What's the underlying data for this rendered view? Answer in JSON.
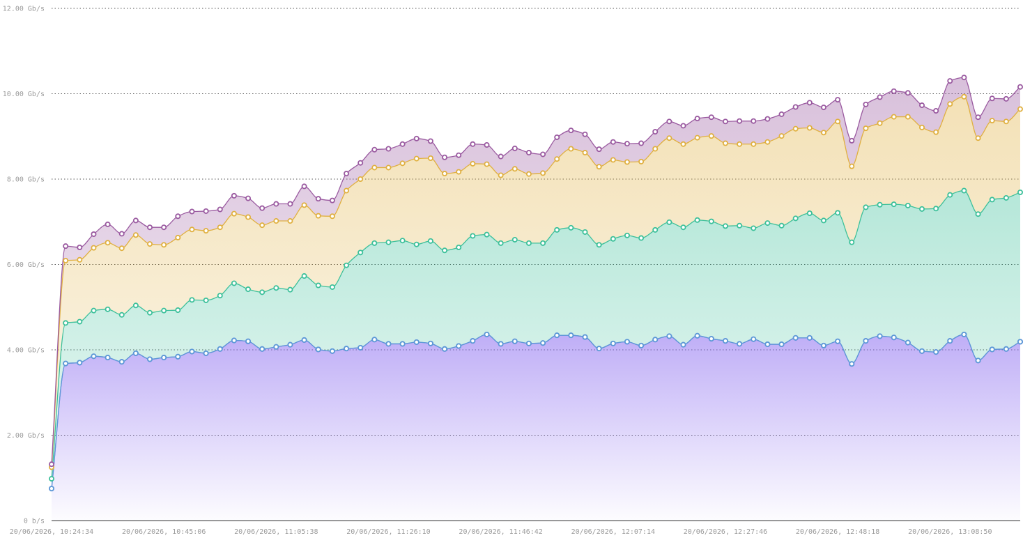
{
  "chart_data": {
    "type": "area",
    "stacked": true,
    "ylim": [
      0,
      12
    ],
    "y_ticks": [
      {
        "value": 0,
        "label": "0 b/s"
      },
      {
        "value": 2,
        "label": "2.00 Gb/s"
      },
      {
        "value": 4,
        "label": "4.00 Gb/s"
      },
      {
        "value": 6,
        "label": "6.00 Gb/s"
      },
      {
        "value": 8,
        "label": "8.00 Gb/s"
      },
      {
        "value": 10,
        "label": "10.00 Gb/s"
      },
      {
        "value": 12,
        "label": "12.00 Gb/s"
      }
    ],
    "x_ticks": [
      {
        "index": 0,
        "label": "20/06/2026, 10:24:34"
      },
      {
        "index": 8,
        "label": "20/06/2026, 10:45:06"
      },
      {
        "index": 16,
        "label": "20/06/2026, 11:05:38"
      },
      {
        "index": 24,
        "label": "20/06/2026, 11:26:10"
      },
      {
        "index": 32,
        "label": "20/06/2026, 11:46:42"
      },
      {
        "index": 40,
        "label": "20/06/2026, 12:07:14"
      },
      {
        "index": 48,
        "label": "20/06/2026, 12:27:46"
      },
      {
        "index": 56,
        "label": "20/06/2026, 12:48:18"
      },
      {
        "index": 64,
        "label": "20/06/2026, 13:08:50"
      }
    ],
    "grid": true,
    "legend": "none",
    "series": [
      {
        "color": "#8b6cf0",
        "values": [
          0.75,
          3.68,
          3.7,
          3.85,
          3.82,
          3.72,
          3.92,
          3.78,
          3.82,
          3.84,
          3.96,
          3.92,
          4.02,
          4.22,
          4.2,
          4.02,
          4.07,
          4.12,
          4.23,
          4.01,
          3.97,
          4.03,
          4.05,
          4.24,
          4.14,
          4.14,
          4.18,
          4.15,
          4.02,
          4.09,
          4.21,
          4.36,
          4.14,
          4.2,
          4.15,
          4.16,
          4.34,
          4.34,
          4.3,
          4.03,
          4.15,
          4.19,
          4.1,
          4.24,
          4.32,
          4.12,
          4.33,
          4.26,
          4.21,
          4.14,
          4.25,
          4.13,
          4.13,
          4.28,
          4.28,
          4.1,
          4.2,
          3.67,
          4.21,
          4.32,
          4.29,
          4.17,
          3.97,
          3.95,
          4.21,
          4.36,
          3.75,
          4.01,
          4.02,
          4.19
        ]
      },
      {
        "color": "#5b9ad6",
        "values": [
          0.75,
          3.68,
          3.7,
          3.85,
          3.82,
          3.72,
          3.92,
          3.78,
          3.82,
          3.84,
          3.96,
          3.92,
          4.02,
          4.22,
          4.2,
          4.02,
          4.07,
          4.12,
          4.23,
          4.01,
          3.97,
          4.03,
          4.05,
          4.24,
          4.14,
          4.14,
          4.18,
          4.15,
          4.02,
          4.09,
          4.21,
          4.36,
          4.14,
          4.2,
          4.15,
          4.16,
          4.34,
          4.34,
          4.3,
          4.03,
          4.15,
          4.19,
          4.1,
          4.24,
          4.32,
          4.12,
          4.33,
          4.26,
          4.21,
          4.14,
          4.25,
          4.13,
          4.13,
          4.28,
          4.28,
          4.1,
          4.2,
          3.67,
          4.21,
          4.32,
          4.29,
          4.17,
          3.97,
          3.95,
          4.21,
          4.36,
          3.75,
          4.01,
          4.02,
          4.19
        ]
      },
      {
        "color": "#3cc09a",
        "values": [
          0.98,
          4.63,
          4.66,
          4.92,
          4.95,
          4.82,
          5.04,
          4.87,
          4.92,
          4.93,
          5.17,
          5.16,
          5.27,
          5.56,
          5.42,
          5.35,
          5.45,
          5.41,
          5.73,
          5.51,
          5.47,
          5.98,
          6.28,
          6.5,
          6.52,
          6.56,
          6.47,
          6.55,
          6.33,
          6.4,
          6.67,
          6.7,
          6.5,
          6.58,
          6.5,
          6.5,
          6.81,
          6.86,
          6.76,
          6.46,
          6.6,
          6.68,
          6.62,
          6.81,
          6.99,
          6.87,
          7.04,
          7.01,
          6.9,
          6.91,
          6.85,
          6.97,
          6.91,
          7.08,
          7.2,
          7.03,
          7.21,
          6.52,
          7.34,
          7.4,
          7.41,
          7.38,
          7.3,
          7.31,
          7.63,
          7.73,
          7.18,
          7.52,
          7.56,
          7.69
        ]
      },
      {
        "color": "#e0b040",
        "values": [
          1.25,
          6.09,
          6.11,
          6.39,
          6.51,
          6.38,
          6.69,
          6.48,
          6.46,
          6.63,
          6.82,
          6.79,
          6.87,
          7.19,
          7.11,
          6.92,
          7.02,
          7.02,
          7.39,
          7.14,
          7.13,
          7.73,
          8.0,
          8.27,
          8.27,
          8.37,
          8.48,
          8.49,
          8.13,
          8.17,
          8.36,
          8.35,
          8.09,
          8.24,
          8.12,
          8.14,
          8.47,
          8.71,
          8.62,
          8.29,
          8.45,
          8.4,
          8.41,
          8.71,
          8.96,
          8.82,
          8.97,
          9.01,
          8.84,
          8.82,
          8.82,
          8.87,
          9.01,
          9.18,
          9.2,
          9.09,
          9.35,
          8.3,
          9.19,
          9.31,
          9.46,
          9.46,
          9.21,
          9.1,
          9.76,
          9.93,
          8.96,
          9.37,
          9.35,
          9.64
        ]
      },
      {
        "color": "#9a5aa0",
        "values": [
          1.32,
          6.43,
          6.4,
          6.71,
          6.94,
          6.72,
          7.03,
          6.87,
          6.87,
          7.13,
          7.24,
          7.25,
          7.29,
          7.61,
          7.55,
          7.32,
          7.42,
          7.42,
          7.83,
          7.54,
          7.5,
          8.13,
          8.38,
          8.69,
          8.71,
          8.82,
          8.95,
          8.89,
          8.51,
          8.56,
          8.82,
          8.8,
          8.53,
          8.72,
          8.62,
          8.58,
          8.98,
          9.14,
          9.05,
          8.7,
          8.87,
          8.83,
          8.84,
          9.11,
          9.35,
          9.25,
          9.42,
          9.45,
          9.35,
          9.36,
          9.36,
          9.41,
          9.52,
          9.69,
          9.79,
          9.68,
          9.86,
          8.9,
          9.75,
          9.92,
          10.06,
          10.02,
          9.73,
          9.6,
          10.3,
          10.38,
          9.45,
          9.89,
          9.88,
          10.16
        ]
      }
    ]
  }
}
